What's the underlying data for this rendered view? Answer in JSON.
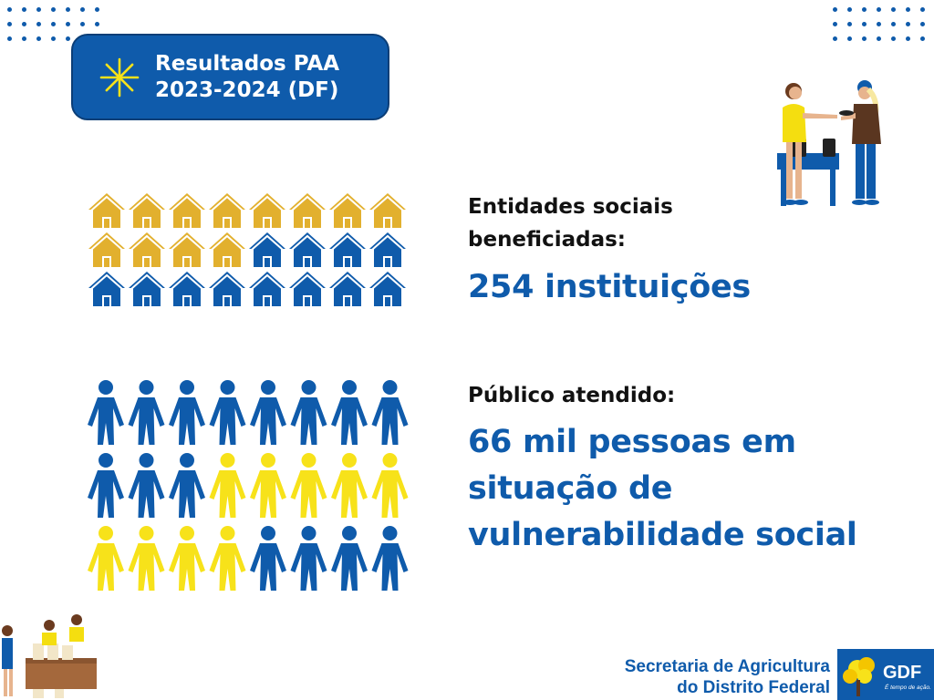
{
  "title": {
    "line1": "Resultados PAA",
    "line2": "2023-2024 (DF)"
  },
  "entities": {
    "label_line1": "Entidades sociais",
    "label_line2": "beneficiadas:",
    "value": "254 instituições"
  },
  "public": {
    "label": "Público atendido:",
    "value_line1": "66 mil pessoas em",
    "value_line2": "situação de",
    "value_line3": "vulnerabilidade social"
  },
  "footer": {
    "line1": "Secretaria de Agricultura",
    "line2": "do Distrito Federal"
  },
  "logo": {
    "name": "GDF",
    "slogan": "É tempo de ação."
  },
  "icons": {
    "title": "sparkle-icon",
    "houses": "house-icon",
    "people": "person-icon"
  },
  "colors": {
    "blue": "#0f5bab",
    "gold": "#e2b02e",
    "yellow": "#f7e21a",
    "text": "#111111"
  },
  "houses_grid": [
    [
      "gold",
      "gold",
      "gold",
      "gold",
      "gold",
      "gold",
      "gold",
      "gold"
    ],
    [
      "gold",
      "gold",
      "gold",
      "gold",
      "blue",
      "blue",
      "blue",
      "blue"
    ],
    [
      "blue",
      "blue",
      "blue",
      "blue",
      "blue",
      "blue",
      "blue",
      "blue"
    ]
  ],
  "people_grid": [
    [
      "blue",
      "blue",
      "blue",
      "blue",
      "blue",
      "blue",
      "blue",
      "blue"
    ],
    [
      "blue",
      "blue",
      "blue",
      "yellow",
      "yellow",
      "yellow",
      "yellow",
      "yellow"
    ],
    [
      "yellow",
      "yellow",
      "yellow",
      "yellow",
      "blue",
      "blue",
      "blue",
      "blue"
    ]
  ]
}
